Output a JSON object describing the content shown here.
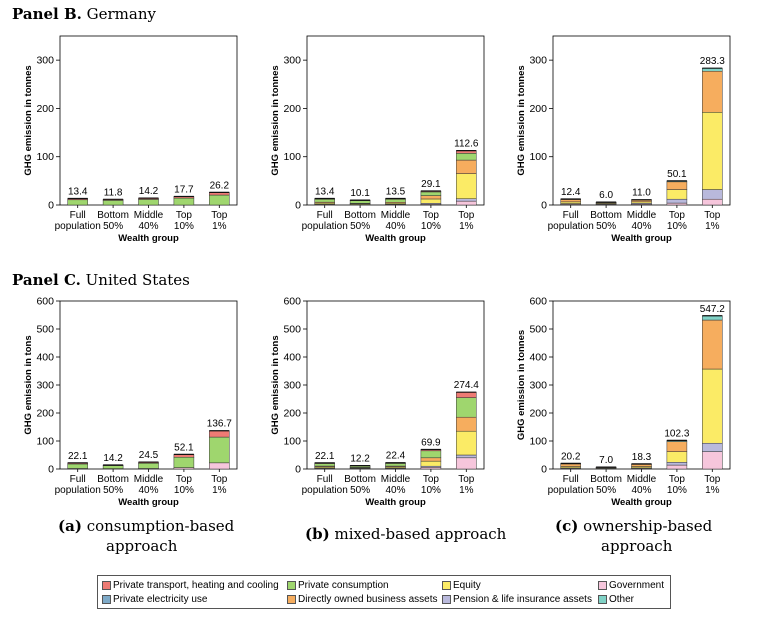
{
  "panels": [
    {
      "label": "Panel B.",
      "country": "Germany"
    },
    {
      "label": "Panel C.",
      "country": "United States"
    }
  ],
  "captions": [
    {
      "letter": "(a)",
      "line1": "consumption-based",
      "line2": "approach"
    },
    {
      "letter": "(b)",
      "line1": "mixed-based approach",
      "line2": ""
    },
    {
      "letter": "(c)",
      "line1": "ownership-based",
      "line2": "approach"
    }
  ],
  "colors": {
    "transport": "#ee7b74",
    "electricity": "#7eaac8",
    "consumption": "#9fd66e",
    "business": "#f6ad5e",
    "equity": "#fbeb66",
    "pension": "#b9b9dc",
    "government": "#f6c6dc",
    "other": "#80d2c6"
  },
  "legend": [
    {
      "key": "transport",
      "label": "Private transport, heating and cooling"
    },
    {
      "key": "consumption",
      "label": "Private consumption"
    },
    {
      "key": "equity",
      "label": "Equity"
    },
    {
      "key": "government",
      "label": "Government"
    },
    {
      "key": "electricity",
      "label": "Private electricity use"
    },
    {
      "key": "business",
      "label": "Directly owned business assets"
    },
    {
      "key": "pension",
      "label": "Pension & life insurance assets"
    },
    {
      "key": "other",
      "label": "Other"
    }
  ],
  "chart_data": [
    {
      "type": "bar",
      "panel": "Germany",
      "approach": "consumption-based",
      "xlabel": "Wealth group",
      "ylabel": "GHG emission in tonnes",
      "ylim": [
        0,
        350
      ],
      "yticks": [
        0,
        100,
        200,
        300
      ],
      "categories": [
        "Full population",
        "Bottom 50%",
        "Middle 40%",
        "Top 10%",
        "Top 1%"
      ],
      "totals": [
        13.4,
        11.8,
        14.2,
        17.7,
        26.2
      ],
      "series": [
        {
          "key": "government",
          "values": [
            0,
            0,
            0,
            0,
            0
          ]
        },
        {
          "key": "consumption",
          "values": [
            10.8,
            9.6,
            11.6,
            14.4,
            20.6
          ]
        },
        {
          "key": "transport",
          "values": [
            2.6,
            2.2,
            2.6,
            3.3,
            5.6
          ]
        }
      ]
    },
    {
      "type": "bar",
      "panel": "Germany",
      "approach": "mixed-based",
      "xlabel": "Wealth group",
      "ylabel": "GHG emission in tonnes",
      "ylim": [
        0,
        350
      ],
      "yticks": [
        0,
        100,
        200,
        300
      ],
      "categories": [
        "Full population",
        "Bottom 50%",
        "Middle 40%",
        "Top 10%",
        "Top 1%"
      ],
      "totals": [
        13.4,
        10.1,
        13.5,
        29.1,
        112.6
      ],
      "series": [
        {
          "key": "government",
          "values": [
            0.8,
            0.6,
            0.8,
            1.5,
            8
          ]
        },
        {
          "key": "pension",
          "values": [
            0.6,
            0.3,
            0.7,
            2,
            5
          ]
        },
        {
          "key": "equity",
          "values": [
            2.5,
            1.5,
            2.2,
            9,
            52
          ]
        },
        {
          "key": "business",
          "values": [
            2,
            1,
            2,
            7,
            28
          ]
        },
        {
          "key": "consumption",
          "values": [
            6,
            5.5,
            6.3,
            7.6,
            14
          ]
        },
        {
          "key": "transport",
          "values": [
            1.5,
            1.2,
            1.5,
            2,
            5.6
          ]
        }
      ]
    },
    {
      "type": "bar",
      "panel": "Germany",
      "approach": "ownership-based",
      "xlabel": "Wealth group",
      "ylabel": "GHG emission in tonnes",
      "ylim": [
        0,
        350
      ],
      "yticks": [
        0,
        100,
        200,
        300
      ],
      "categories": [
        "Full population",
        "Bottom 50%",
        "Middle 40%",
        "Top 10%",
        "Top 1%"
      ],
      "totals": [
        12.4,
        6.0,
        11.0,
        50.1,
        283.3
      ],
      "series": [
        {
          "key": "government",
          "values": [
            1.5,
            1.2,
            1.5,
            4,
            12
          ]
        },
        {
          "key": "pension",
          "values": [
            1.5,
            0.8,
            2,
            8,
            20
          ]
        },
        {
          "key": "equity",
          "values": [
            3.5,
            1.5,
            3,
            20,
            160
          ]
        },
        {
          "key": "business",
          "values": [
            5,
            2,
            4,
            16,
            85
          ]
        },
        {
          "key": "other",
          "values": [
            0.9,
            0.5,
            0.5,
            2.1,
            6.3
          ]
        }
      ]
    },
    {
      "type": "bar",
      "panel": "United States",
      "approach": "consumption-based",
      "xlabel": "Wealth group",
      "ylabel": "GHG emission in tons",
      "ylim": [
        0,
        600
      ],
      "yticks": [
        0,
        100,
        200,
        300,
        400,
        500,
        600
      ],
      "categories": [
        "Full population",
        "Bottom 50%",
        "Middle 40%",
        "Top 10%",
        "Top 1%"
      ],
      "totals": [
        22.1,
        14.2,
        24.5,
        52.1,
        136.7
      ],
      "series": [
        {
          "key": "government",
          "values": [
            2,
            1.5,
            2,
            5,
            22
          ]
        },
        {
          "key": "consumption",
          "values": [
            16,
            10.5,
            18.5,
            37,
            92
          ]
        },
        {
          "key": "transport",
          "values": [
            4.1,
            2.2,
            4,
            10.1,
            22.7
          ]
        }
      ]
    },
    {
      "type": "bar",
      "panel": "United States",
      "approach": "mixed-based",
      "xlabel": "Wealth group",
      "ylabel": "GHG emission in tons",
      "ylim": [
        0,
        600
      ],
      "yticks": [
        0,
        100,
        200,
        300,
        400,
        500,
        600
      ],
      "categories": [
        "Full population",
        "Bottom 50%",
        "Middle 40%",
        "Top 10%",
        "Top 1%"
      ],
      "totals": [
        22.1,
        12.2,
        22.4,
        69.9,
        274.4
      ],
      "series": [
        {
          "key": "government",
          "values": [
            2,
            1.5,
            2,
            6,
            40
          ]
        },
        {
          "key": "pension",
          "values": [
            1.5,
            0.6,
            1.5,
            4,
            10
          ]
        },
        {
          "key": "equity",
          "values": [
            4,
            2,
            4,
            18,
            85
          ]
        },
        {
          "key": "business",
          "values": [
            3,
            1.5,
            3,
            12,
            50
          ]
        },
        {
          "key": "consumption",
          "values": [
            9,
            5.5,
            9.5,
            25,
            70
          ]
        },
        {
          "key": "transport",
          "values": [
            2.6,
            1.1,
            2.4,
            4.9,
            19.4
          ]
        }
      ]
    },
    {
      "type": "bar",
      "panel": "United States",
      "approach": "ownership-based",
      "xlabel": "Wealth group",
      "ylabel": "GHG emission in tonnes",
      "ylim": [
        0,
        600
      ],
      "yticks": [
        0,
        100,
        200,
        300,
        400,
        500,
        600
      ],
      "categories": [
        "Full population",
        "Bottom 50%",
        "Middle 40%",
        "Top 10%",
        "Top 1%"
      ],
      "totals": [
        20.2,
        7.0,
        18.3,
        102.3,
        547.2
      ],
      "series": [
        {
          "key": "government",
          "values": [
            2,
            1,
            2,
            14,
            62
          ]
        },
        {
          "key": "pension",
          "values": [
            2,
            1,
            2,
            10,
            30
          ]
        },
        {
          "key": "equity",
          "values": [
            5,
            2,
            5,
            38,
            265
          ]
        },
        {
          "key": "business",
          "values": [
            9,
            2.5,
            7.5,
            36,
            175
          ]
        },
        {
          "key": "other",
          "values": [
            2.2,
            0.5,
            1.8,
            4.3,
            15.2
          ]
        }
      ]
    }
  ]
}
